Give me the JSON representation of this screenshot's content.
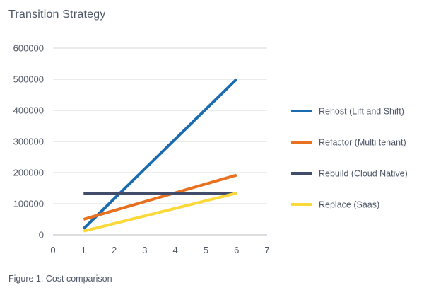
{
  "title": "Transition Strategy",
  "caption": "Figure 1: Cost comparison",
  "chart_data": {
    "type": "line",
    "title": "Transition Strategy",
    "xlabel": "",
    "ylabel": "",
    "xlim": [
      0,
      7
    ],
    "ylim": [
      0,
      600000
    ],
    "x_ticks": [
      "0",
      "1",
      "2",
      "3",
      "4",
      "5",
      "6",
      "7"
    ],
    "y_ticks": [
      "0",
      "100000",
      "200000",
      "300000",
      "400000",
      "500000",
      "600000"
    ],
    "grid": "horizontal",
    "legend_position": "right",
    "series": [
      {
        "name": "Rehost (Lift and Shift)",
        "color": "#1a6bb0",
        "points": [
          [
            1,
            20000
          ],
          [
            6,
            500000
          ]
        ]
      },
      {
        "name": "Refactor (Multi tenant)",
        "color": "#e8711f",
        "points": [
          [
            1,
            50000
          ],
          [
            6,
            192000
          ]
        ]
      },
      {
        "name": "Rebuild (Cloud Native)",
        "color": "#414d6a",
        "points": [
          [
            1,
            132000
          ],
          [
            6,
            132000
          ]
        ]
      },
      {
        "name": "Replace (Saas)",
        "color": "#fcd838",
        "points": [
          [
            1,
            12000
          ],
          [
            6,
            134000
          ]
        ]
      }
    ]
  }
}
